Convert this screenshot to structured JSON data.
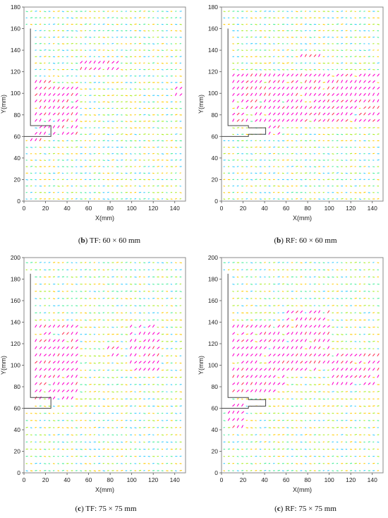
{
  "chart_data": [
    {
      "type": "quiver",
      "panel_tag": "b",
      "caption_rest": " TF: 60 × 60 mm",
      "xlabel": "X(mm)",
      "ylabel": "Y(mm)",
      "xlim": [
        0,
        150
      ],
      "ylim": [
        0,
        180
      ],
      "xticks": [
        "0",
        "20",
        "40",
        "60",
        "80",
        "100",
        "120",
        "140"
      ],
      "yticks": [
        "0",
        "20",
        "40",
        "60",
        "80",
        "100",
        "120",
        "140",
        "160",
        "180"
      ],
      "obstacle_outline": [
        [
          6,
          160
        ],
        [
          6,
          70
        ],
        [
          25,
          70
        ],
        [
          25,
          60
        ],
        [
          0,
          60
        ]
      ],
      "fast_zones": [
        [
          3,
          17,
          52,
          58
        ],
        [
          3,
          52,
          62,
          108
        ],
        [
          3,
          25,
          108,
          113
        ],
        [
          50,
          87,
          118,
          130
        ],
        [
          138,
          150,
          98,
          104
        ]
      ],
      "mid_zones": [
        [
          20,
          150,
          60,
          110
        ]
      ],
      "palette": {
        "fast": "#ff00cc",
        "mid": "#ff3355",
        "slow1": "#ffcc00",
        "slow2": "#aaee22",
        "slow3": "#44ee99",
        "slow4": "#33ccff"
      }
    },
    {
      "type": "quiver",
      "panel_tag": "b",
      "caption_rest": " RF: 60 × 60 mm",
      "xlabel": "X(mm)",
      "ylabel": "Y(mm)",
      "xlim": [
        0,
        150
      ],
      "ylim": [
        0,
        180
      ],
      "xticks": [
        "0",
        "20",
        "40",
        "60",
        "80",
        "100",
        "120",
        "140"
      ],
      "yticks": [
        "0",
        "20",
        "40",
        "60",
        "80",
        "100",
        "120",
        "140",
        "160",
        "180"
      ],
      "obstacle_outline": [
        [
          6,
          160
        ],
        [
          6,
          70
        ],
        [
          25,
          70
        ],
        [
          25,
          68
        ],
        [
          41,
          68
        ],
        [
          41,
          62
        ],
        [
          25,
          62
        ],
        [
          25,
          60
        ],
        [
          0,
          60
        ]
      ],
      "fast_zones": [
        [
          8,
          145,
          72,
          120
        ],
        [
          70,
          92,
          130,
          137
        ],
        [
          40,
          55,
          62,
          75
        ]
      ],
      "mid_zones": [
        [
          0,
          150,
          60,
          130
        ]
      ],
      "palette": {
        "fast": "#ff00cc",
        "mid": "#ff3355",
        "slow1": "#ffcc00",
        "slow2": "#aaee22",
        "slow3": "#44ee99",
        "slow4": "#33ccff"
      }
    },
    {
      "type": "quiver",
      "panel_tag": "c",
      "caption_rest": " TF: 75 × 75 mm",
      "xlabel": "X(mm)",
      "ylabel": "Y(mm)",
      "xlim": [
        0,
        150
      ],
      "ylim": [
        0,
        200
      ],
      "xticks": [
        "0",
        "20",
        "40",
        "60",
        "80",
        "100",
        "120",
        "140"
      ],
      "yticks": [
        "0",
        "20",
        "40",
        "60",
        "80",
        "100",
        "120",
        "140",
        "160",
        "180",
        "200"
      ],
      "obstacle_outline": [
        [
          6,
          185
        ],
        [
          6,
          70
        ],
        [
          25,
          70
        ],
        [
          25,
          60
        ],
        [
          0,
          60
        ]
      ],
      "fast_zones": [
        [
          8,
          50,
          65,
          140
        ],
        [
          95,
          125,
          90,
          140
        ],
        [
          75,
          90,
          105,
          118
        ]
      ],
      "mid_zones": [
        [
          0,
          150,
          60,
          145
        ]
      ],
      "palette": {
        "fast": "#ff00cc",
        "mid": "#ff3355",
        "slow1": "#ffcc00",
        "slow2": "#aaee22",
        "slow3": "#44ee99",
        "slow4": "#33ccff"
      }
    },
    {
      "type": "quiver",
      "panel_tag": "c",
      "caption_rest": " RF: 75 × 75 mm",
      "xlabel": "X(mm)",
      "ylabel": "Y(mm)",
      "xlim": [
        0,
        150
      ],
      "ylim": [
        0,
        200
      ],
      "xticks": [
        "0",
        "20",
        "40",
        "60",
        "80",
        "100",
        "120",
        "140"
      ],
      "yticks": [
        "0",
        "20",
        "40",
        "60",
        "80",
        "100",
        "120",
        "140",
        "160",
        "180",
        "200"
      ],
      "obstacle_outline": [
        [
          6,
          185
        ],
        [
          6,
          70
        ],
        [
          25,
          70
        ],
        [
          25,
          68
        ],
        [
          41,
          68
        ],
        [
          41,
          62
        ],
        [
          25,
          62
        ],
        [
          25,
          60
        ],
        [
          0,
          60
        ]
      ],
      "fast_zones": [
        [
          5,
          60,
          75,
          140
        ],
        [
          60,
          100,
          90,
          150
        ],
        [
          100,
          150,
          80,
          110
        ],
        [
          5,
          20,
          40,
          65
        ]
      ],
      "mid_zones": [
        [
          0,
          150,
          30,
          160
        ]
      ],
      "palette": {
        "fast": "#ff00cc",
        "mid": "#ff3355",
        "slow1": "#ffcc00",
        "slow2": "#aaee22",
        "slow3": "#44ee99",
        "slow4": "#33ccff"
      }
    }
  ]
}
